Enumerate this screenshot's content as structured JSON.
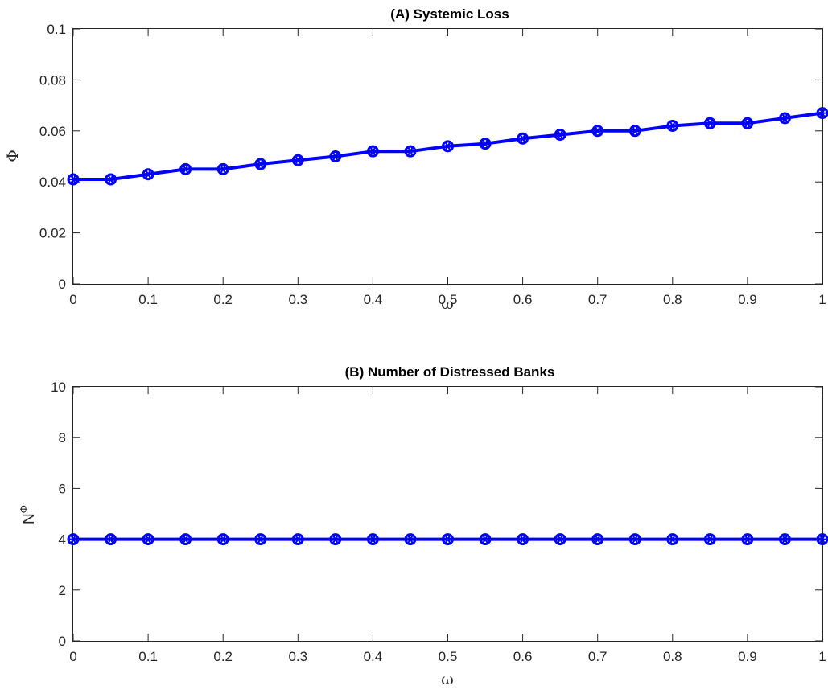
{
  "colors": {
    "series": "#0000ff",
    "axis": "#262626"
  },
  "chart_data": [
    {
      "type": "line",
      "title": "(A) Systemic Loss",
      "xlabel": "ω",
      "ylabel": "Φ",
      "xlim": [
        0,
        1
      ],
      "ylim": [
        0,
        0.1
      ],
      "xticks": [
        "0",
        "0.1",
        "0.2",
        "0.3",
        "0.4",
        "0.5",
        "0.6",
        "0.7",
        "0.8",
        "0.9",
        "1"
      ],
      "yticks": [
        "0",
        "0.02",
        "0.04",
        "0.06",
        "0.08",
        "0.1"
      ],
      "grid": false,
      "marker": "circle-star",
      "x": [
        0,
        0.05,
        0.1,
        0.15,
        0.2,
        0.25,
        0.3,
        0.35,
        0.4,
        0.45,
        0.5,
        0.55,
        0.6,
        0.65,
        0.7,
        0.75,
        0.8,
        0.85,
        0.9,
        0.95,
        1
      ],
      "series": [
        {
          "values": [
            0.041,
            0.041,
            0.043,
            0.045,
            0.045,
            0.047,
            0.0485,
            0.05,
            0.052,
            0.052,
            0.054,
            0.055,
            0.057,
            0.0585,
            0.06,
            0.06,
            0.062,
            0.063,
            0.063,
            0.065,
            0.067
          ]
        }
      ]
    },
    {
      "type": "line",
      "title": "(B) Number of Distressed Banks",
      "xlabel": "ω",
      "ylabel": "N",
      "ylabel_sup": "Φ",
      "xlim": [
        0,
        1
      ],
      "ylim": [
        0,
        10
      ],
      "xticks": [
        "0",
        "0.1",
        "0.2",
        "0.3",
        "0.4",
        "0.5",
        "0.6",
        "0.7",
        "0.8",
        "0.9",
        "1"
      ],
      "yticks": [
        "0",
        "2",
        "4",
        "6",
        "8",
        "10"
      ],
      "grid": false,
      "marker": "circle-star",
      "x": [
        0,
        0.05,
        0.1,
        0.15,
        0.2,
        0.25,
        0.3,
        0.35,
        0.4,
        0.45,
        0.5,
        0.55,
        0.6,
        0.65,
        0.7,
        0.75,
        0.8,
        0.85,
        0.9,
        0.95,
        1
      ],
      "series": [
        {
          "values": [
            4,
            4,
            4,
            4,
            4,
            4,
            4,
            4,
            4,
            4,
            4,
            4,
            4,
            4,
            4,
            4,
            4,
            4,
            4,
            4,
            4
          ]
        }
      ]
    }
  ]
}
